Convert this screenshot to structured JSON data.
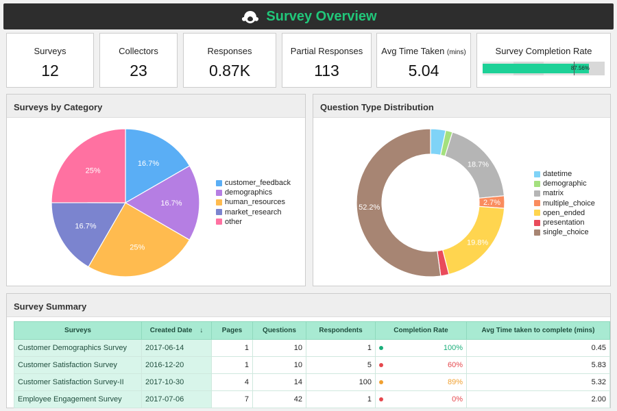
{
  "header": {
    "title": "Survey Overview",
    "logo_icon": "monkey-logo-icon"
  },
  "kpis": [
    {
      "label": "Surveys",
      "value": "12"
    },
    {
      "label": "Collectors",
      "value": "23"
    },
    {
      "label": "Responses",
      "value": "0.87K"
    },
    {
      "label": "Partial Responses",
      "value": "113"
    },
    {
      "label": "Avg Time Taken",
      "label_unit": "(mins)",
      "value": "5.04"
    }
  ],
  "completion": {
    "label": "Survey Completion Rate",
    "value": 87.56,
    "value_label": "87.56%"
  },
  "category_panel": {
    "title": "Surveys by Category"
  },
  "question_panel": {
    "title": "Question Type Distribution"
  },
  "summary_panel": {
    "title": "Survey Summary"
  },
  "chart_data": [
    {
      "type": "pie",
      "title": "Surveys by Category",
      "legend_position": "right",
      "categories": [
        "customer_feedback",
        "demographics",
        "human_resources",
        "market_research",
        "other"
      ],
      "values": [
        16.7,
        16.7,
        25,
        16.7,
        25
      ],
      "labels": [
        "16.7%",
        "16.7%",
        "25%",
        "16.7%",
        "25%"
      ],
      "colors": [
        "#5aaef5",
        "#b57ee3",
        "#ffbb4f",
        "#7b84cf",
        "#ff71a1"
      ]
    },
    {
      "type": "pie",
      "title": "Question Type Distribution",
      "donut": true,
      "legend_position": "right",
      "categories": [
        "datetime",
        "demographic",
        "matrix",
        "multiple_choice",
        "open_ended",
        "presentation",
        "single_choice"
      ],
      "values": [
        3.3,
        1.5,
        18.7,
        2.7,
        19.8,
        1.8,
        52.2
      ],
      "labels": [
        "",
        "",
        "18.7%",
        "2.7%",
        "19.8%",
        "",
        "52.2%"
      ],
      "colors": [
        "#7fd3f7",
        "#a4e07e",
        "#b5b5b5",
        "#fa8c5e",
        "#ffd54f",
        "#e94b5b",
        "#a78573"
      ]
    }
  ],
  "table": {
    "columns": [
      "Surveys",
      "Created Date",
      "Pages",
      "Questions",
      "Respondents",
      "Completion Rate",
      "Avg Time taken to complete (mins)"
    ],
    "sort_icon": "arrow-down-icon",
    "rows": [
      {
        "name": "Customer Demographics Survey",
        "date": "2017-06-14",
        "pages": "1",
        "questions": "10",
        "respondents": "1",
        "rate": "100%",
        "rate_color": "#1aae7a",
        "time": "0.45"
      },
      {
        "name": "Customer Satisfaction Survey",
        "date": "2016-12-20",
        "pages": "1",
        "questions": "10",
        "respondents": "5",
        "rate": "60%",
        "rate_color": "#e5484d",
        "time": "5.83"
      },
      {
        "name": "Customer Satisfaction Survey-II",
        "date": "2017-10-30",
        "pages": "4",
        "questions": "14",
        "respondents": "100",
        "rate": "89%",
        "rate_color": "#f0a030",
        "time": "5.32"
      },
      {
        "name": "Employee Engagement Survey",
        "date": "2017-07-06",
        "pages": "7",
        "questions": "42",
        "respondents": "1",
        "rate": "0%",
        "rate_color": "#e5484d",
        "time": "2.00"
      }
    ]
  }
}
